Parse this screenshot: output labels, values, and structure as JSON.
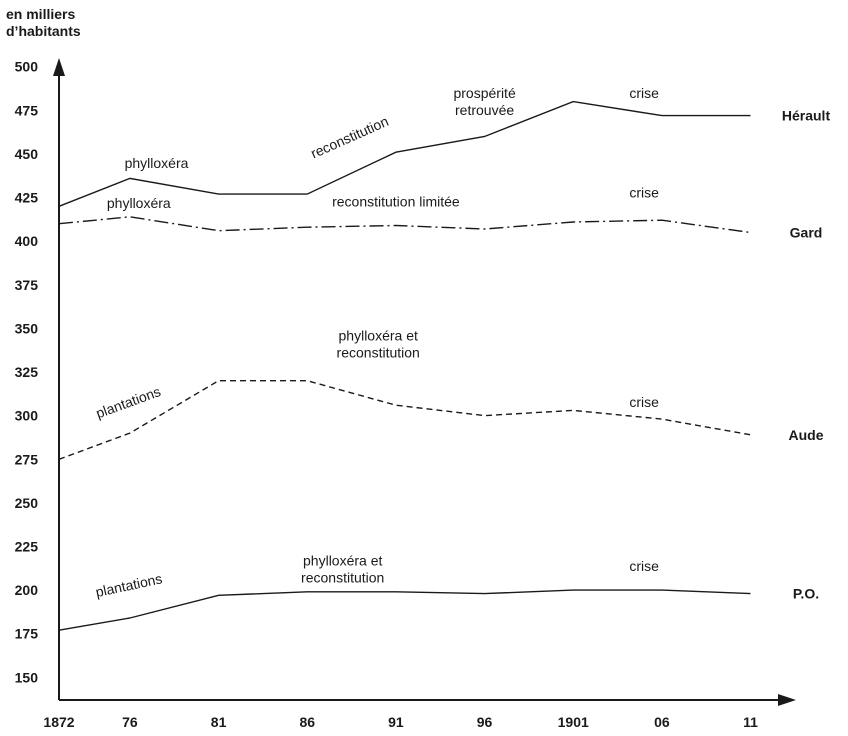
{
  "chart_data": {
    "type": "line",
    "ylabel": [
      "en milliers",
      "d’habitants"
    ],
    "x": [
      "1872",
      "76",
      "81",
      "86",
      "91",
      "96",
      "1901",
      "06",
      "11"
    ],
    "x_years": [
      1872,
      1876,
      1881,
      1886,
      1891,
      1896,
      1901,
      1906,
      1911
    ],
    "yticks": [
      150,
      175,
      200,
      225,
      250,
      275,
      300,
      325,
      350,
      375,
      400,
      425,
      450,
      475,
      500
    ],
    "ylim": [
      137,
      505
    ],
    "xlim": [
      1872,
      1913
    ],
    "grid": false,
    "series": [
      {
        "name": "Hérault",
        "style": "solid",
        "points": [
          [
            1872,
            420
          ],
          [
            1876,
            436
          ],
          [
            1881,
            427
          ],
          [
            1886,
            427
          ],
          [
            1891,
            451
          ],
          [
            1896,
            460
          ],
          [
            1901,
            480
          ],
          [
            1906,
            472
          ],
          [
            1911,
            472
          ]
        ]
      },
      {
        "name": "Gard",
        "style": "dashdot",
        "points": [
          [
            1872,
            410
          ],
          [
            1876,
            414
          ],
          [
            1881,
            406
          ],
          [
            1886,
            408
          ],
          [
            1891,
            409
          ],
          [
            1896,
            407
          ],
          [
            1901,
            411
          ],
          [
            1906,
            412
          ],
          [
            1911,
            405
          ]
        ]
      },
      {
        "name": "Aude",
        "style": "dashed",
        "points": [
          [
            1872,
            275
          ],
          [
            1876,
            290
          ],
          [
            1881,
            320
          ],
          [
            1886,
            320
          ],
          [
            1891,
            306
          ],
          [
            1896,
            300
          ],
          [
            1901,
            303
          ],
          [
            1906,
            298
          ],
          [
            1911,
            289
          ]
        ]
      },
      {
        "name": "P.O.",
        "style": "solid",
        "points": [
          [
            1872,
            177
          ],
          [
            1876,
            184
          ],
          [
            1881,
            197
          ],
          [
            1886,
            199
          ],
          [
            1891,
            199
          ],
          [
            1896,
            198
          ],
          [
            1901,
            200
          ],
          [
            1906,
            200
          ],
          [
            1911,
            198
          ]
        ]
      }
    ],
    "annotations": [
      {
        "lines": [
          "phylloxéra"
        ],
        "x": 1877.5,
        "y": 442,
        "rotate": 0
      },
      {
        "lines": [
          "reconstitution"
        ],
        "x": 1888.5,
        "y": 457,
        "rotate": -24
      },
      {
        "lines": [
          "prospérité",
          "retrouvée"
        ],
        "x": 1896,
        "y": 482,
        "rotate": 0
      },
      {
        "lines": [
          "crise"
        ],
        "x": 1905,
        "y": 482,
        "rotate": 0
      },
      {
        "lines": [
          "phylloxéra"
        ],
        "x": 1876.5,
        "y": 419,
        "rotate": 0
      },
      {
        "lines": [
          "reconstitution limitée"
        ],
        "x": 1891,
        "y": 420,
        "rotate": 0
      },
      {
        "lines": [
          "crise"
        ],
        "x": 1905,
        "y": 425,
        "rotate": 0
      },
      {
        "lines": [
          "phylloxéra et",
          "reconstitution"
        ],
        "x": 1890,
        "y": 343,
        "rotate": 0
      },
      {
        "lines": [
          "plantations"
        ],
        "x": 1876,
        "y": 305,
        "rotate": -20
      },
      {
        "lines": [
          "crise"
        ],
        "x": 1905,
        "y": 305,
        "rotate": 0
      },
      {
        "lines": [
          "phylloxéra et",
          "reconstitution"
        ],
        "x": 1888,
        "y": 214,
        "rotate": 0
      },
      {
        "lines": [
          "plantations"
        ],
        "x": 1876,
        "y": 200,
        "rotate": -12
      },
      {
        "lines": [
          "crise"
        ],
        "x": 1905,
        "y": 211,
        "rotate": 0
      }
    ]
  }
}
